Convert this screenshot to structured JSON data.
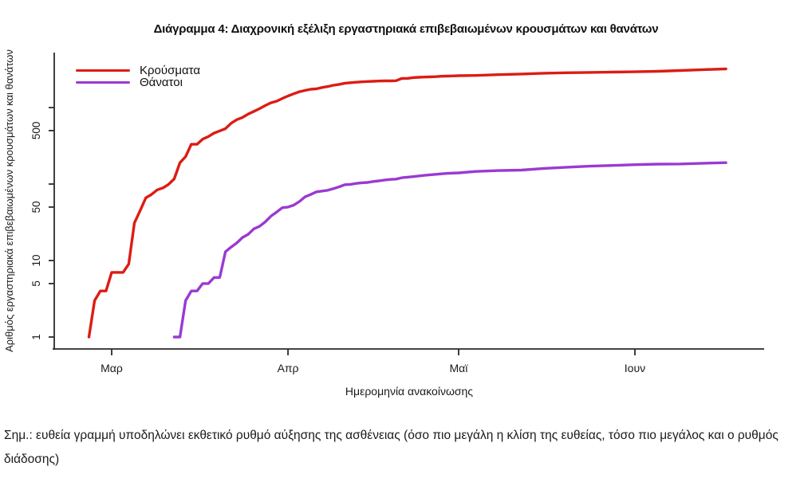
{
  "title": "Διάγραμμα 4: Διαχρονική εξέλιξη εργαστηριακά επιβεβαιωμένων κρουσμάτων και θανάτων",
  "legend": {
    "items": [
      {
        "label": "Κρούσματα",
        "color": "#dc1c13"
      },
      {
        "label": "Θάνατοι",
        "color": "#9a3ad2"
      }
    ]
  },
  "x_axis": {
    "label": "Ημερομηνία ανακοίνωσης",
    "ticks": [
      {
        "label": "Μαρ",
        "day": 4
      },
      {
        "label": "Απρ",
        "day": 35
      },
      {
        "label": "Μαϊ",
        "day": 65
      },
      {
        "label": "Ιουν",
        "day": 96
      }
    ]
  },
  "y_axis": {
    "label": "Αριθμός εργαστηριακά επιβεβαιωμένων κρουσμάτων και θανάτων",
    "scale": "log",
    "ticks": [
      {
        "value": 1,
        "label": "1"
      },
      {
        "value": 5,
        "label": "5"
      },
      {
        "value": 10,
        "label": "10"
      },
      {
        "value": 50,
        "label": "50"
      },
      {
        "value": 100,
        "label": ""
      },
      {
        "value": 500,
        "label": "500"
      },
      {
        "value": 1000,
        "label": ""
      }
    ]
  },
  "note": "Σημ.: ευθεία γραμμή υποδηλώνει εκθετικό ρυθμό αύξησης της ασθένειας (όσο πιο μεγάλη η κλίση της ευθείας, τόσο πιο μεγάλος και ο ρυθμός διάδοσης)",
  "chart_data": {
    "type": "line",
    "title": "Διάγραμμα 4: Διαχρονική εξέλιξη εργαστηριακά επιβεβαιωμένων κρουσμάτων και θανάτων",
    "xlabel": "Ημερομηνία ανακοίνωσης",
    "ylabel": "Αριθμός εργαστηριακά επιβεβαιωμένων κρουσμάτων και θανάτων",
    "y_scale": "log",
    "ylim": [
      1,
      3500
    ],
    "x_unit": "ημέρες, όπου ημέρα 0 = 26 Φεβ (πρώτο κρούσμα), Μαρ 1 = 4, Απρ 1 = 35, Μαϊ 1 = 65, Ιουν 1 = 96",
    "grid": false,
    "legend_position": "top-left",
    "series": [
      {
        "name": "Κρούσματα",
        "color": "#dc1c13",
        "points": [
          [
            0,
            1
          ],
          [
            1,
            3
          ],
          [
            2,
            4
          ],
          [
            3,
            4
          ],
          [
            4,
            7
          ],
          [
            5,
            7
          ],
          [
            6,
            7
          ],
          [
            7,
            9
          ],
          [
            8,
            31
          ],
          [
            9,
            45
          ],
          [
            10,
            66
          ],
          [
            11,
            73
          ],
          [
            12,
            84
          ],
          [
            13,
            89
          ],
          [
            14,
            99
          ],
          [
            15,
            117
          ],
          [
            16,
            190
          ],
          [
            17,
            228
          ],
          [
            18,
            331
          ],
          [
            19,
            331
          ],
          [
            20,
            387
          ],
          [
            21,
            418
          ],
          [
            22,
            464
          ],
          [
            23,
            495
          ],
          [
            24,
            530
          ],
          [
            25,
            624
          ],
          [
            26,
            695
          ],
          [
            27,
            743
          ],
          [
            28,
            821
          ],
          [
            29,
            892
          ],
          [
            30,
            966
          ],
          [
            31,
            1061
          ],
          [
            32,
            1156
          ],
          [
            33,
            1212
          ],
          [
            34,
            1314
          ],
          [
            35,
            1415
          ],
          [
            36,
            1514
          ],
          [
            37,
            1613
          ],
          [
            38,
            1673
          ],
          [
            39,
            1735
          ],
          [
            40,
            1755
          ],
          [
            41,
            1832
          ],
          [
            42,
            1884
          ],
          [
            43,
            1955
          ],
          [
            44,
            2011
          ],
          [
            45,
            2081
          ],
          [
            46,
            2114
          ],
          [
            47,
            2145
          ],
          [
            48,
            2170
          ],
          [
            49,
            2192
          ],
          [
            50,
            2207
          ],
          [
            51,
            2224
          ],
          [
            52,
            2235
          ],
          [
            53,
            2235
          ],
          [
            54,
            2245
          ],
          [
            55,
            2401
          ],
          [
            56,
            2408
          ],
          [
            57,
            2463
          ],
          [
            58,
            2490
          ],
          [
            59,
            2506
          ],
          [
            60,
            2517
          ],
          [
            61,
            2534
          ],
          [
            62,
            2566
          ],
          [
            63,
            2576
          ],
          [
            64,
            2591
          ],
          [
            65,
            2612
          ],
          [
            68,
            2632
          ],
          [
            72,
            2691
          ],
          [
            76,
            2744
          ],
          [
            80,
            2810
          ],
          [
            84,
            2853
          ],
          [
            88,
            2882
          ],
          [
            92,
            2906
          ],
          [
            96,
            2937
          ],
          [
            100,
            2980
          ],
          [
            104,
            3049
          ],
          [
            108,
            3134
          ],
          [
            112,
            3203
          ]
        ]
      },
      {
        "name": "Θάνατοι",
        "color": "#9a3ad2",
        "points": [
          [
            15,
            1
          ],
          [
            16,
            1
          ],
          [
            17,
            3
          ],
          [
            18,
            4
          ],
          [
            19,
            4
          ],
          [
            20,
            5
          ],
          [
            21,
            5
          ],
          [
            22,
            6
          ],
          [
            23,
            6
          ],
          [
            24,
            13
          ],
          [
            25,
            15
          ],
          [
            26,
            17
          ],
          [
            27,
            20
          ],
          [
            28,
            22
          ],
          [
            29,
            26
          ],
          [
            30,
            28
          ],
          [
            31,
            32
          ],
          [
            32,
            38
          ],
          [
            33,
            43
          ],
          [
            34,
            49
          ],
          [
            35,
            50
          ],
          [
            36,
            53
          ],
          [
            37,
            59
          ],
          [
            38,
            68
          ],
          [
            39,
            73
          ],
          [
            40,
            79
          ],
          [
            41,
            81
          ],
          [
            42,
            83
          ],
          [
            43,
            87
          ],
          [
            44,
            92
          ],
          [
            45,
            98
          ],
          [
            46,
            99
          ],
          [
            47,
            102
          ],
          [
            48,
            104
          ],
          [
            49,
            105
          ],
          [
            50,
            108
          ],
          [
            51,
            110
          ],
          [
            52,
            113
          ],
          [
            53,
            115
          ],
          [
            54,
            116
          ],
          [
            55,
            121
          ],
          [
            57,
            125
          ],
          [
            59,
            130
          ],
          [
            61,
            134
          ],
          [
            63,
            138
          ],
          [
            65,
            140
          ],
          [
            68,
            146
          ],
          [
            72,
            150
          ],
          [
            76,
            152
          ],
          [
            80,
            160
          ],
          [
            84,
            166
          ],
          [
            88,
            171
          ],
          [
            92,
            175
          ],
          [
            96,
            179
          ],
          [
            100,
            182
          ],
          [
            104,
            183
          ],
          [
            108,
            187
          ],
          [
            112,
            190
          ]
        ]
      }
    ]
  }
}
